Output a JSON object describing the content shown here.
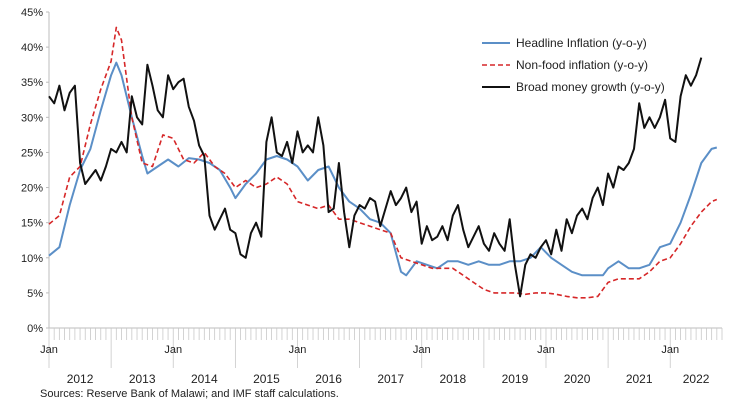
{
  "chart_data": {
    "type": "line",
    "title": "",
    "xlabel": "",
    "ylabel": "",
    "ylim": [
      0,
      45
    ],
    "y_ticks": [
      "0%",
      "5%",
      "10%",
      "15%",
      "20%",
      "25%",
      "30%",
      "35%",
      "40%",
      "45%"
    ],
    "month_tick_label": "Jan",
    "year_labels": [
      "2012",
      "2013",
      "2014",
      "2015",
      "2016",
      "2017",
      "2018",
      "2019",
      "2020",
      "2021",
      "2022"
    ],
    "legend_position": "top-right",
    "grid": false,
    "source": "Sources: Reserve Bank of Malawi; and IMF staff calculations.",
    "series": [
      {
        "name": "Headline Inflation (y-o-y)",
        "color": "#5b8fc7",
        "style": "solid",
        "points": [
          [
            "2012-01",
            10.3
          ],
          [
            "2012-03",
            11.5
          ],
          [
            "2012-05",
            17.5
          ],
          [
            "2012-07",
            22.5
          ],
          [
            "2012-09",
            25.5
          ],
          [
            "2012-11",
            31.0
          ],
          [
            "2013-01",
            36.0
          ],
          [
            "2013-02",
            37.8
          ],
          [
            "2013-03",
            36.0
          ],
          [
            "2013-05",
            30.0
          ],
          [
            "2013-07",
            24.5
          ],
          [
            "2013-08",
            22.0
          ],
          [
            "2013-10",
            23.0
          ],
          [
            "2013-12",
            24.0
          ],
          [
            "2014-02",
            23.0
          ],
          [
            "2014-04",
            24.2
          ],
          [
            "2014-06",
            24.0
          ],
          [
            "2014-08",
            23.5
          ],
          [
            "2014-10",
            22.5
          ],
          [
            "2014-12",
            20.0
          ],
          [
            "2015-01",
            18.5
          ],
          [
            "2015-03",
            20.5
          ],
          [
            "2015-05",
            22.0
          ],
          [
            "2015-07",
            24.0
          ],
          [
            "2015-09",
            24.5
          ],
          [
            "2015-11",
            24.0
          ],
          [
            "2016-01",
            23.0
          ],
          [
            "2016-03",
            21.0
          ],
          [
            "2016-05",
            22.5
          ],
          [
            "2016-07",
            23.0
          ],
          [
            "2016-09",
            20.0
          ],
          [
            "2016-11",
            18.0
          ],
          [
            "2017-01",
            17.0
          ],
          [
            "2017-03",
            15.5
          ],
          [
            "2017-05",
            15.0
          ],
          [
            "2017-07",
            13.5
          ],
          [
            "2017-09",
            8.0
          ],
          [
            "2017-10",
            7.5
          ],
          [
            "2017-12",
            9.5
          ],
          [
            "2018-02",
            9.0
          ],
          [
            "2018-04",
            8.5
          ],
          [
            "2018-06",
            9.5
          ],
          [
            "2018-08",
            9.5
          ],
          [
            "2018-10",
            9.0
          ],
          [
            "2018-12",
            9.5
          ],
          [
            "2019-02",
            9.0
          ],
          [
            "2019-04",
            9.0
          ],
          [
            "2019-06",
            9.5
          ],
          [
            "2019-08",
            9.5
          ],
          [
            "2019-10",
            10.0
          ],
          [
            "2019-12",
            11.5
          ],
          [
            "2020-02",
            10.0
          ],
          [
            "2020-04",
            9.0
          ],
          [
            "2020-06",
            8.0
          ],
          [
            "2020-08",
            7.5
          ],
          [
            "2020-10",
            7.5
          ],
          [
            "2020-12",
            7.5
          ],
          [
            "2021-01",
            8.5
          ],
          [
            "2021-03",
            9.5
          ],
          [
            "2021-05",
            8.5
          ],
          [
            "2021-07",
            8.5
          ],
          [
            "2021-09",
            9.0
          ],
          [
            "2021-11",
            11.5
          ],
          [
            "2022-01",
            12.0
          ],
          [
            "2022-03",
            15.0
          ],
          [
            "2022-05",
            19.0
          ],
          [
            "2022-07",
            23.5
          ],
          [
            "2022-09",
            25.5
          ],
          [
            "2022-10",
            25.7
          ]
        ]
      },
      {
        "name": "Non-food inflation (y-o-y)",
        "color": "#d62728",
        "style": "dashed",
        "points": [
          [
            "2012-01",
            14.8
          ],
          [
            "2012-03",
            16.0
          ],
          [
            "2012-05",
            21.5
          ],
          [
            "2012-07",
            23.0
          ],
          [
            "2012-09",
            29.0
          ],
          [
            "2012-11",
            34.0
          ],
          [
            "2013-01",
            38.0
          ],
          [
            "2013-02",
            42.8
          ],
          [
            "2013-03",
            41.0
          ],
          [
            "2013-05",
            30.0
          ],
          [
            "2013-07",
            23.5
          ],
          [
            "2013-09",
            23.0
          ],
          [
            "2013-11",
            27.5
          ],
          [
            "2014-01",
            27.0
          ],
          [
            "2014-03",
            24.0
          ],
          [
            "2014-05",
            23.5
          ],
          [
            "2014-07",
            25.0
          ],
          [
            "2014-09",
            23.0
          ],
          [
            "2014-11",
            22.0
          ],
          [
            "2015-01",
            20.0
          ],
          [
            "2015-03",
            21.0
          ],
          [
            "2015-05",
            20.0
          ],
          [
            "2015-07",
            20.5
          ],
          [
            "2015-09",
            21.5
          ],
          [
            "2015-11",
            20.5
          ],
          [
            "2016-01",
            18.0
          ],
          [
            "2016-03",
            17.5
          ],
          [
            "2016-05",
            17.0
          ],
          [
            "2016-07",
            17.5
          ],
          [
            "2016-09",
            15.5
          ],
          [
            "2016-11",
            15.5
          ],
          [
            "2017-01",
            15.0
          ],
          [
            "2017-03",
            14.5
          ],
          [
            "2017-05",
            14.0
          ],
          [
            "2017-07",
            13.5
          ],
          [
            "2017-09",
            10.0
          ],
          [
            "2017-11",
            9.5
          ],
          [
            "2018-01",
            9.0
          ],
          [
            "2018-03",
            8.5
          ],
          [
            "2018-05",
            8.5
          ],
          [
            "2018-07",
            8.5
          ],
          [
            "2018-09",
            7.5
          ],
          [
            "2018-11",
            6.5
          ],
          [
            "2019-01",
            5.5
          ],
          [
            "2019-03",
            5.0
          ],
          [
            "2019-05",
            5.0
          ],
          [
            "2019-07",
            5.0
          ],
          [
            "2019-09",
            4.8
          ],
          [
            "2019-11",
            5.0
          ],
          [
            "2020-01",
            5.0
          ],
          [
            "2020-03",
            4.8
          ],
          [
            "2020-05",
            4.5
          ],
          [
            "2020-07",
            4.3
          ],
          [
            "2020-09",
            4.3
          ],
          [
            "2020-11",
            4.5
          ],
          [
            "2021-01",
            6.5
          ],
          [
            "2021-03",
            7.0
          ],
          [
            "2021-05",
            7.0
          ],
          [
            "2021-07",
            7.0
          ],
          [
            "2021-09",
            8.0
          ],
          [
            "2021-11",
            9.5
          ],
          [
            "2022-01",
            10.0
          ],
          [
            "2022-03",
            12.0
          ],
          [
            "2022-05",
            14.5
          ],
          [
            "2022-07",
            16.5
          ],
          [
            "2022-09",
            18.0
          ],
          [
            "2022-10",
            18.3
          ]
        ]
      },
      {
        "name": "Broad money growth (y-o-y)",
        "color": "#111111",
        "style": "solid",
        "points": [
          [
            "2012-01",
            33.0
          ],
          [
            "2012-02",
            32.0
          ],
          [
            "2012-03",
            34.5
          ],
          [
            "2012-04",
            31.0
          ],
          [
            "2012-05",
            33.5
          ],
          [
            "2012-06",
            34.5
          ],
          [
            "2012-07",
            23.5
          ],
          [
            "2012-08",
            20.5
          ],
          [
            "2012-09",
            21.5
          ],
          [
            "2012-10",
            22.5
          ],
          [
            "2012-11",
            21.0
          ],
          [
            "2012-12",
            23.0
          ],
          [
            "2013-01",
            25.5
          ],
          [
            "2013-02",
            25.0
          ],
          [
            "2013-03",
            26.5
          ],
          [
            "2013-04",
            25.0
          ],
          [
            "2013-05",
            33.0
          ],
          [
            "2013-06",
            30.0
          ],
          [
            "2013-07",
            29.0
          ],
          [
            "2013-08",
            37.5
          ],
          [
            "2013-09",
            34.5
          ],
          [
            "2013-10",
            31.0
          ],
          [
            "2013-11",
            30.0
          ],
          [
            "2013-12",
            36.0
          ],
          [
            "2014-01",
            34.0
          ],
          [
            "2014-02",
            35.0
          ],
          [
            "2014-03",
            35.5
          ],
          [
            "2014-04",
            31.5
          ],
          [
            "2014-05",
            29.5
          ],
          [
            "2014-06",
            26.0
          ],
          [
            "2014-07",
            24.5
          ],
          [
            "2014-08",
            16.0
          ],
          [
            "2014-09",
            14.0
          ],
          [
            "2014-10",
            15.5
          ],
          [
            "2014-11",
            17.0
          ],
          [
            "2014-12",
            14.0
          ],
          [
            "2015-01",
            13.5
          ],
          [
            "2015-02",
            10.5
          ],
          [
            "2015-03",
            10.0
          ],
          [
            "2015-04",
            13.5
          ],
          [
            "2015-05",
            15.0
          ],
          [
            "2015-06",
            13.0
          ],
          [
            "2015-07",
            26.5
          ],
          [
            "2015-08",
            30.0
          ],
          [
            "2015-09",
            25.0
          ],
          [
            "2015-10",
            24.5
          ],
          [
            "2015-11",
            26.5
          ],
          [
            "2015-12",
            23.5
          ],
          [
            "2016-01",
            28.0
          ],
          [
            "2016-02",
            25.0
          ],
          [
            "2016-03",
            26.0
          ],
          [
            "2016-04",
            25.0
          ],
          [
            "2016-05",
            30.0
          ],
          [
            "2016-06",
            26.0
          ],
          [
            "2016-07",
            16.5
          ],
          [
            "2016-08",
            17.0
          ],
          [
            "2016-09",
            23.5
          ],
          [
            "2016-10",
            16.5
          ],
          [
            "2016-11",
            11.5
          ],
          [
            "2016-12",
            16.0
          ],
          [
            "2017-01",
            17.5
          ],
          [
            "2017-02",
            17.0
          ],
          [
            "2017-03",
            18.5
          ],
          [
            "2017-04",
            18.0
          ],
          [
            "2017-05",
            14.5
          ],
          [
            "2017-06",
            17.0
          ],
          [
            "2017-07",
            19.5
          ],
          [
            "2017-08",
            17.5
          ],
          [
            "2017-09",
            18.5
          ],
          [
            "2017-10",
            20.0
          ],
          [
            "2017-11",
            16.5
          ],
          [
            "2017-12",
            18.0
          ],
          [
            "2018-01",
            12.0
          ],
          [
            "2018-02",
            14.5
          ],
          [
            "2018-03",
            12.5
          ],
          [
            "2018-04",
            13.0
          ],
          [
            "2018-05",
            14.5
          ],
          [
            "2018-06",
            12.5
          ],
          [
            "2018-07",
            16.0
          ],
          [
            "2018-08",
            17.5
          ],
          [
            "2018-09",
            14.0
          ],
          [
            "2018-10",
            11.5
          ],
          [
            "2018-11",
            13.0
          ],
          [
            "2018-12",
            14.5
          ],
          [
            "2019-01",
            12.0
          ],
          [
            "2019-02",
            11.0
          ],
          [
            "2019-03",
            13.5
          ],
          [
            "2019-04",
            12.0
          ],
          [
            "2019-05",
            11.0
          ],
          [
            "2019-06",
            15.5
          ],
          [
            "2019-07",
            9.0
          ],
          [
            "2019-08",
            4.5
          ],
          [
            "2019-09",
            9.0
          ],
          [
            "2019-10",
            10.5
          ],
          [
            "2019-11",
            10.0
          ],
          [
            "2019-12",
            11.5
          ],
          [
            "2020-01",
            12.5
          ],
          [
            "2020-02",
            10.5
          ],
          [
            "2020-03",
            14.0
          ],
          [
            "2020-04",
            11.0
          ],
          [
            "2020-05",
            15.5
          ],
          [
            "2020-06",
            13.5
          ],
          [
            "2020-07",
            16.0
          ],
          [
            "2020-08",
            17.0
          ],
          [
            "2020-09",
            15.5
          ],
          [
            "2020-10",
            18.5
          ],
          [
            "2020-11",
            20.0
          ],
          [
            "2020-12",
            17.5
          ],
          [
            "2021-01",
            22.0
          ],
          [
            "2021-02",
            20.0
          ],
          [
            "2021-03",
            23.0
          ],
          [
            "2021-04",
            22.5
          ],
          [
            "2021-05",
            23.5
          ],
          [
            "2021-06",
            25.5
          ],
          [
            "2021-07",
            32.0
          ],
          [
            "2021-08",
            28.5
          ],
          [
            "2021-09",
            30.0
          ],
          [
            "2021-10",
            28.5
          ],
          [
            "2021-11",
            30.0
          ],
          [
            "2021-12",
            32.5
          ],
          [
            "2022-01",
            27.0
          ],
          [
            "2022-02",
            26.5
          ],
          [
            "2022-03",
            33.0
          ],
          [
            "2022-04",
            36.0
          ],
          [
            "2022-05",
            34.5
          ],
          [
            "2022-06",
            36.0
          ],
          [
            "2022-07",
            38.5
          ]
        ]
      }
    ]
  }
}
